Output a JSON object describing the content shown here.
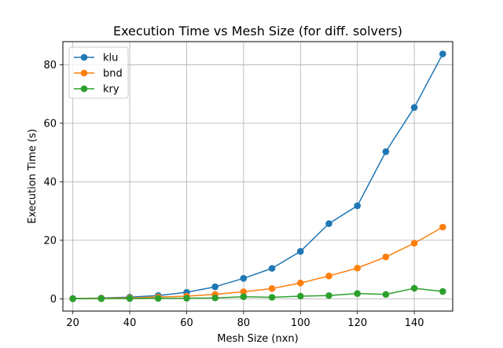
{
  "chart_data": {
    "type": "line",
    "title": "Execution Time vs Mesh Size (for diff. solvers)",
    "xlabel": "Mesh Size (nxn)",
    "ylabel": "Execution Time (s)",
    "x": [
      20,
      30,
      40,
      50,
      60,
      70,
      80,
      90,
      100,
      110,
      120,
      130,
      140,
      150
    ],
    "xlim": [
      16.5,
      153.5
    ],
    "ylim": [
      -4.2,
      87.9
    ],
    "xticks": [
      20,
      40,
      60,
      80,
      100,
      120,
      140
    ],
    "yticks": [
      0,
      20,
      40,
      60,
      80
    ],
    "grid": true,
    "legend_position": "top-left",
    "series": [
      {
        "name": "klu",
        "color": "#1f77b4",
        "values": [
          0.1,
          0.25,
          0.55,
          1.1,
          2.2,
          4.1,
          7.0,
          10.4,
          16.2,
          25.7,
          31.8,
          50.3,
          65.4,
          83.7
        ]
      },
      {
        "name": "bnd",
        "color": "#ff7f0e",
        "values": [
          0.05,
          0.15,
          0.3,
          0.6,
          0.9,
          1.5,
          2.4,
          3.5,
          5.4,
          7.8,
          10.5,
          14.3,
          19.0,
          24.5
        ]
      },
      {
        "name": "kry",
        "color": "#2ca02c",
        "values": [
          0.02,
          0.05,
          0.1,
          0.15,
          0.2,
          0.3,
          0.7,
          0.5,
          0.9,
          1.1,
          1.8,
          1.5,
          3.6,
          2.5
        ]
      }
    ]
  }
}
